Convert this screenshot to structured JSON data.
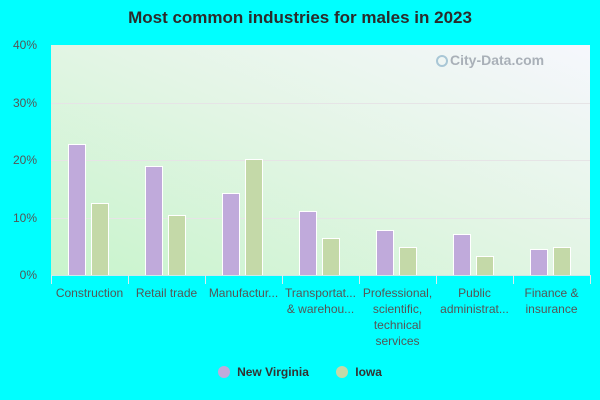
{
  "chart_data": {
    "type": "bar",
    "title": "Most common industries for males in 2023",
    "xlabel": "",
    "ylabel": "",
    "ylim": [
      0,
      40
    ],
    "yticks": [
      "0%",
      "10%",
      "20%",
      "30%",
      "40%"
    ],
    "grid": true,
    "legend_position": "bottom",
    "categories": [
      "Construction",
      "Retail trade",
      "Manufactur...",
      "Transportat... & warehou...",
      "Professional, scientific, technical services",
      "Public administrat...",
      "Finance & insurance"
    ],
    "series": [
      {
        "name": "New Virginia",
        "color": "#c0aadb",
        "values": [
          22.8,
          18.9,
          14.2,
          11.1,
          7.8,
          7.1,
          4.6
        ]
      },
      {
        "name": "Iowa",
        "color": "#c4d9a8",
        "values": [
          12.5,
          10.4,
          20.1,
          6.4,
          4.8,
          3.3,
          4.8
        ]
      }
    ]
  },
  "labels": {
    "title": "Most common industries for males in 2023",
    "yticks": [
      "40%",
      "30%",
      "20%",
      "10%",
      "0%"
    ],
    "xlabels": [
      [
        "Construction"
      ],
      [
        "Retail trade"
      ],
      [
        "Manufactur..."
      ],
      [
        "Transportat...",
        "& warehou..."
      ],
      [
        "Professional,",
        "scientific,",
        "technical",
        "services"
      ],
      [
        "Public",
        "administrat..."
      ],
      [
        "Finance &",
        "insurance"
      ]
    ],
    "legend": [
      "New Virginia",
      "Iowa"
    ],
    "watermark": "City-Data.com"
  }
}
